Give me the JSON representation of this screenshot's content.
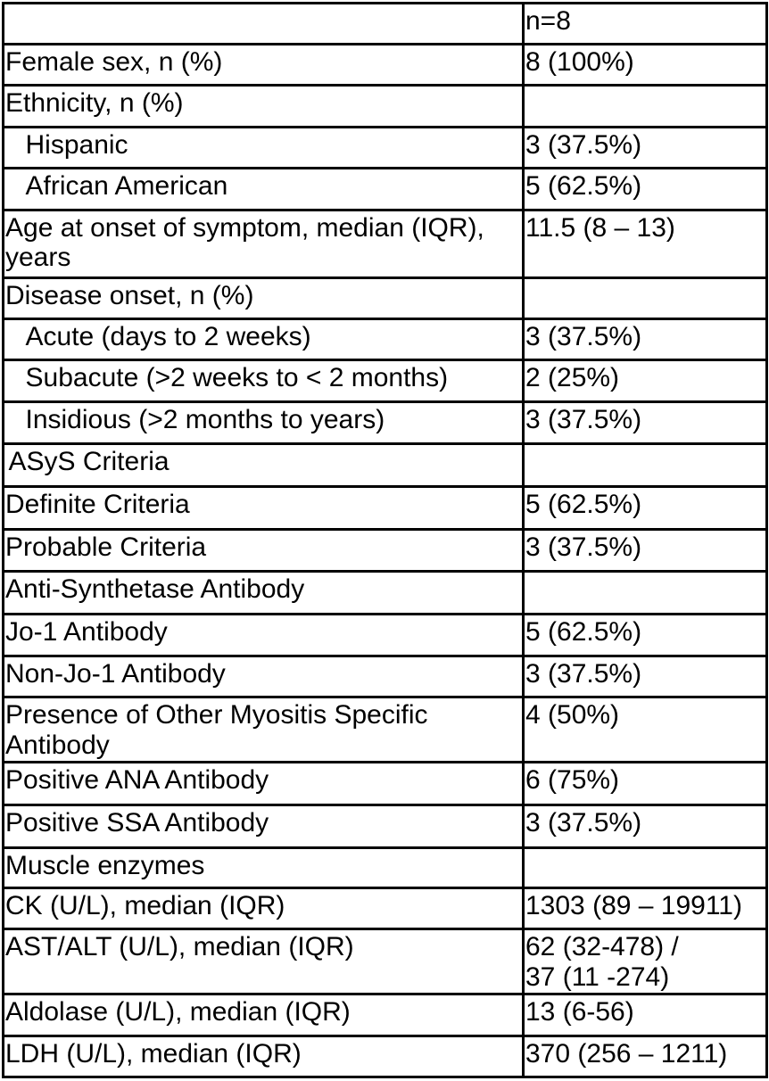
{
  "table": {
    "column_header": "n=8",
    "rows": [
      {
        "label": "",
        "value": "n=8",
        "indent": "none"
      },
      {
        "label": "Female sex, n (%)",
        "value": "8 (100%)",
        "indent": "none"
      },
      {
        "label": "Ethnicity, n (%)",
        "value": "",
        "indent": "none"
      },
      {
        "label": "Hispanic",
        "value": "3 (37.5%)",
        "indent": "sub"
      },
      {
        "label": "African American",
        "value": "5 (62.5%)",
        "indent": "sub"
      },
      {
        "label": "Age at onset of symptom, median (IQR), years",
        "value": "11.5 (8 – 13)",
        "indent": "none"
      },
      {
        "label": "Disease onset, n (%)",
        "value": "",
        "indent": "none"
      },
      {
        "label": "Acute (days to 2 weeks)",
        "value": "3 (37.5%)",
        "indent": "sub"
      },
      {
        "label": "Subacute (>2 weeks to < 2 months)",
        "value": "2 (25%)",
        "indent": "sub"
      },
      {
        "label": "Insidious (>2 months to years)",
        "value": "3 (37.5%)",
        "indent": "sub"
      },
      {
        "label": "ASyS Criteria",
        "value": "",
        "indent": "small"
      },
      {
        "label": "Definite Criteria",
        "value": "5 (62.5%)",
        "indent": "none"
      },
      {
        "label": "Probable Criteria",
        "value": "3 (37.5%)",
        "indent": "none"
      },
      {
        "label": "Anti-Synthetase Antibody",
        "value": "",
        "indent": "none"
      },
      {
        "label": "Jo-1 Antibody",
        "value": "5 (62.5%)",
        "indent": "none"
      },
      {
        "label": "Non-Jo-1 Antibody",
        "value": "3 (37.5%)",
        "indent": "none"
      },
      {
        "label": "Presence of Other Myositis Specific Antibody",
        "value": "4 (50%)",
        "indent": "none"
      },
      {
        "label": "Positive ANA Antibody",
        "value": "6 (75%)",
        "indent": "none"
      },
      {
        "label": "Positive SSA Antibody",
        "value": "3 (37.5%)",
        "indent": "none"
      },
      {
        "label": "Muscle enzymes",
        "value": "",
        "indent": "none"
      },
      {
        "label": "CK (U/L), median (IQR)",
        "value": "1303 (89 – 19911)",
        "indent": "none"
      },
      {
        "label": "AST/ALT (U/L), median (IQR)",
        "value": "62 (32-478) /\n37 (11 -274)",
        "indent": "none"
      },
      {
        "label": "Aldolase (U/L), median (IQR)",
        "value": "13 (6-56)",
        "indent": "none"
      },
      {
        "label": "LDH (U/L), median (IQR)",
        "value": "370 (256 – 1211)",
        "indent": "none"
      }
    ]
  },
  "colors": {
    "border": "#000000",
    "text": "#000000",
    "background": "#ffffff"
  },
  "chart_data": {
    "type": "table",
    "title": "",
    "columns": [
      "",
      "n=8"
    ],
    "rows": [
      [
        "Female sex, n (%)",
        "8 (100%)"
      ],
      [
        "Ethnicity, n (%)",
        ""
      ],
      [
        "Hispanic",
        "3 (37.5%)"
      ],
      [
        "African American",
        "5 (62.5%)"
      ],
      [
        "Age at onset of symptom, median (IQR), years",
        "11.5 (8 – 13)"
      ],
      [
        "Disease onset, n (%)",
        ""
      ],
      [
        "Acute (days to 2 weeks)",
        "3 (37.5%)"
      ],
      [
        "Subacute (>2 weeks to < 2 months)",
        "2 (25%)"
      ],
      [
        "Insidious (>2 months to years)",
        "3 (37.5%)"
      ],
      [
        "ASyS Criteria",
        ""
      ],
      [
        "Definite Criteria",
        "5 (62.5%)"
      ],
      [
        "Probable Criteria",
        "3 (37.5%)"
      ],
      [
        "Anti-Synthetase Antibody",
        ""
      ],
      [
        "Jo-1 Antibody",
        "5 (62.5%)"
      ],
      [
        "Non-Jo-1 Antibody",
        "3 (37.5%)"
      ],
      [
        "Presence of Other Myositis Specific Antibody",
        "4 (50%)"
      ],
      [
        "Positive ANA Antibody",
        "6 (75%)"
      ],
      [
        "Positive SSA Antibody",
        "3 (37.5%)"
      ],
      [
        "Muscle enzymes",
        ""
      ],
      [
        "CK (U/L), median (IQR)",
        "1303 (89 – 19911)"
      ],
      [
        "AST/ALT (U/L), median (IQR)",
        "62 (32-478) / 37 (11 -274)"
      ],
      [
        "Aldolase (U/L), median (IQR)",
        "13 (6-56)"
      ],
      [
        "LDH (U/L), median (IQR)",
        "370 (256 – 1211)"
      ]
    ]
  }
}
